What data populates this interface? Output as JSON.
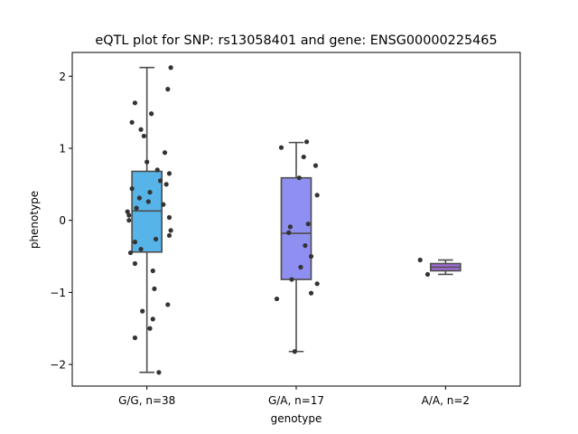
{
  "chart_data": {
    "type": "box",
    "title": "eQTL plot for SNP: rs13058401 and gene: ENSG00000225465",
    "xlabel": "genotype",
    "ylabel": "phenotype",
    "ylim": [
      -2.3,
      2.33
    ],
    "yticks": [
      -2,
      -1,
      0,
      1,
      2
    ],
    "grid": false,
    "categories": [
      "G/G, n=38",
      "G/A, n=17",
      "A/A, n=2"
    ],
    "boxes": [
      {
        "category": "G/G, n=38",
        "color": "#56b4e9",
        "q1": -0.44,
        "median": 0.13,
        "q3": 0.68,
        "whisker_low": -2.11,
        "whisker_high": 2.12
      },
      {
        "category": "G/A, n=17",
        "color": "#8f8ff2",
        "q1": -0.82,
        "median": -0.18,
        "q3": 0.59,
        "whisker_low": -1.82,
        "whisker_high": 1.08
      },
      {
        "category": "A/A, n=2",
        "color": "#a06cd5",
        "q1": -0.7,
        "median": -0.65,
        "q3": -0.6,
        "whisker_low": -0.75,
        "whisker_high": -0.55
      }
    ],
    "points": [
      [
        {
          "dx": 0.16,
          "y": 2.12
        },
        {
          "dx": 0.14,
          "y": 1.82
        },
        {
          "dx": -0.08,
          "y": 1.63
        },
        {
          "dx": 0.03,
          "y": 1.48
        },
        {
          "dx": -0.1,
          "y": 1.36
        },
        {
          "dx": -0.04,
          "y": 1.26
        },
        {
          "dx": -0.02,
          "y": 1.17
        },
        {
          "dx": 0.12,
          "y": 0.94
        },
        {
          "dx": 0.0,
          "y": 0.81
        },
        {
          "dx": 0.07,
          "y": 0.7
        },
        {
          "dx": 0.15,
          "y": 0.65
        },
        {
          "dx": 0.09,
          "y": 0.55
        },
        {
          "dx": 0.13,
          "y": 0.5
        },
        {
          "dx": -0.1,
          "y": 0.44
        },
        {
          "dx": 0.02,
          "y": 0.39
        },
        {
          "dx": -0.05,
          "y": 0.31
        },
        {
          "dx": 0.01,
          "y": 0.26
        },
        {
          "dx": 0.11,
          "y": 0.22
        },
        {
          "dx": -0.07,
          "y": 0.17
        },
        {
          "dx": -0.13,
          "y": 0.12
        },
        {
          "dx": -0.12,
          "y": 0.07
        },
        {
          "dx": 0.15,
          "y": 0.04
        },
        {
          "dx": -0.12,
          "y": 0.0
        },
        {
          "dx": 0.16,
          "y": -0.14
        },
        {
          "dx": 0.15,
          "y": -0.21
        },
        {
          "dx": 0.06,
          "y": -0.26
        },
        {
          "dx": -0.08,
          "y": -0.3
        },
        {
          "dx": -0.04,
          "y": -0.4
        },
        {
          "dx": -0.11,
          "y": -0.45
        },
        {
          "dx": -0.08,
          "y": -0.6
        },
        {
          "dx": 0.04,
          "y": -0.7
        },
        {
          "dx": 0.05,
          "y": -0.95
        },
        {
          "dx": 0.14,
          "y": -1.17
        },
        {
          "dx": -0.03,
          "y": -1.26
        },
        {
          "dx": 0.04,
          "y": -1.37
        },
        {
          "dx": 0.02,
          "y": -1.5
        },
        {
          "dx": -0.08,
          "y": -1.63
        },
        {
          "dx": 0.08,
          "y": -2.11
        }
      ],
      [
        {
          "dx": 0.07,
          "y": 1.09
        },
        {
          "dx": -0.1,
          "y": 1.01
        },
        {
          "dx": 0.05,
          "y": 0.88
        },
        {
          "dx": 0.13,
          "y": 0.76
        },
        {
          "dx": 0.02,
          "y": 0.59
        },
        {
          "dx": 0.14,
          "y": 0.35
        },
        {
          "dx": 0.08,
          "y": -0.05
        },
        {
          "dx": -0.04,
          "y": -0.09
        },
        {
          "dx": -0.05,
          "y": -0.17
        },
        {
          "dx": 0.06,
          "y": -0.35
        },
        {
          "dx": 0.1,
          "y": -0.5
        },
        {
          "dx": 0.03,
          "y": -0.65
        },
        {
          "dx": -0.03,
          "y": -0.82
        },
        {
          "dx": 0.14,
          "y": -0.88
        },
        {
          "dx": 0.1,
          "y": -1.01
        },
        {
          "dx": -0.13,
          "y": -1.09
        },
        {
          "dx": -0.01,
          "y": -1.82
        }
      ],
      [
        {
          "dx": -0.17,
          "y": -0.55
        },
        {
          "dx": -0.12,
          "y": -0.75
        }
      ]
    ]
  }
}
